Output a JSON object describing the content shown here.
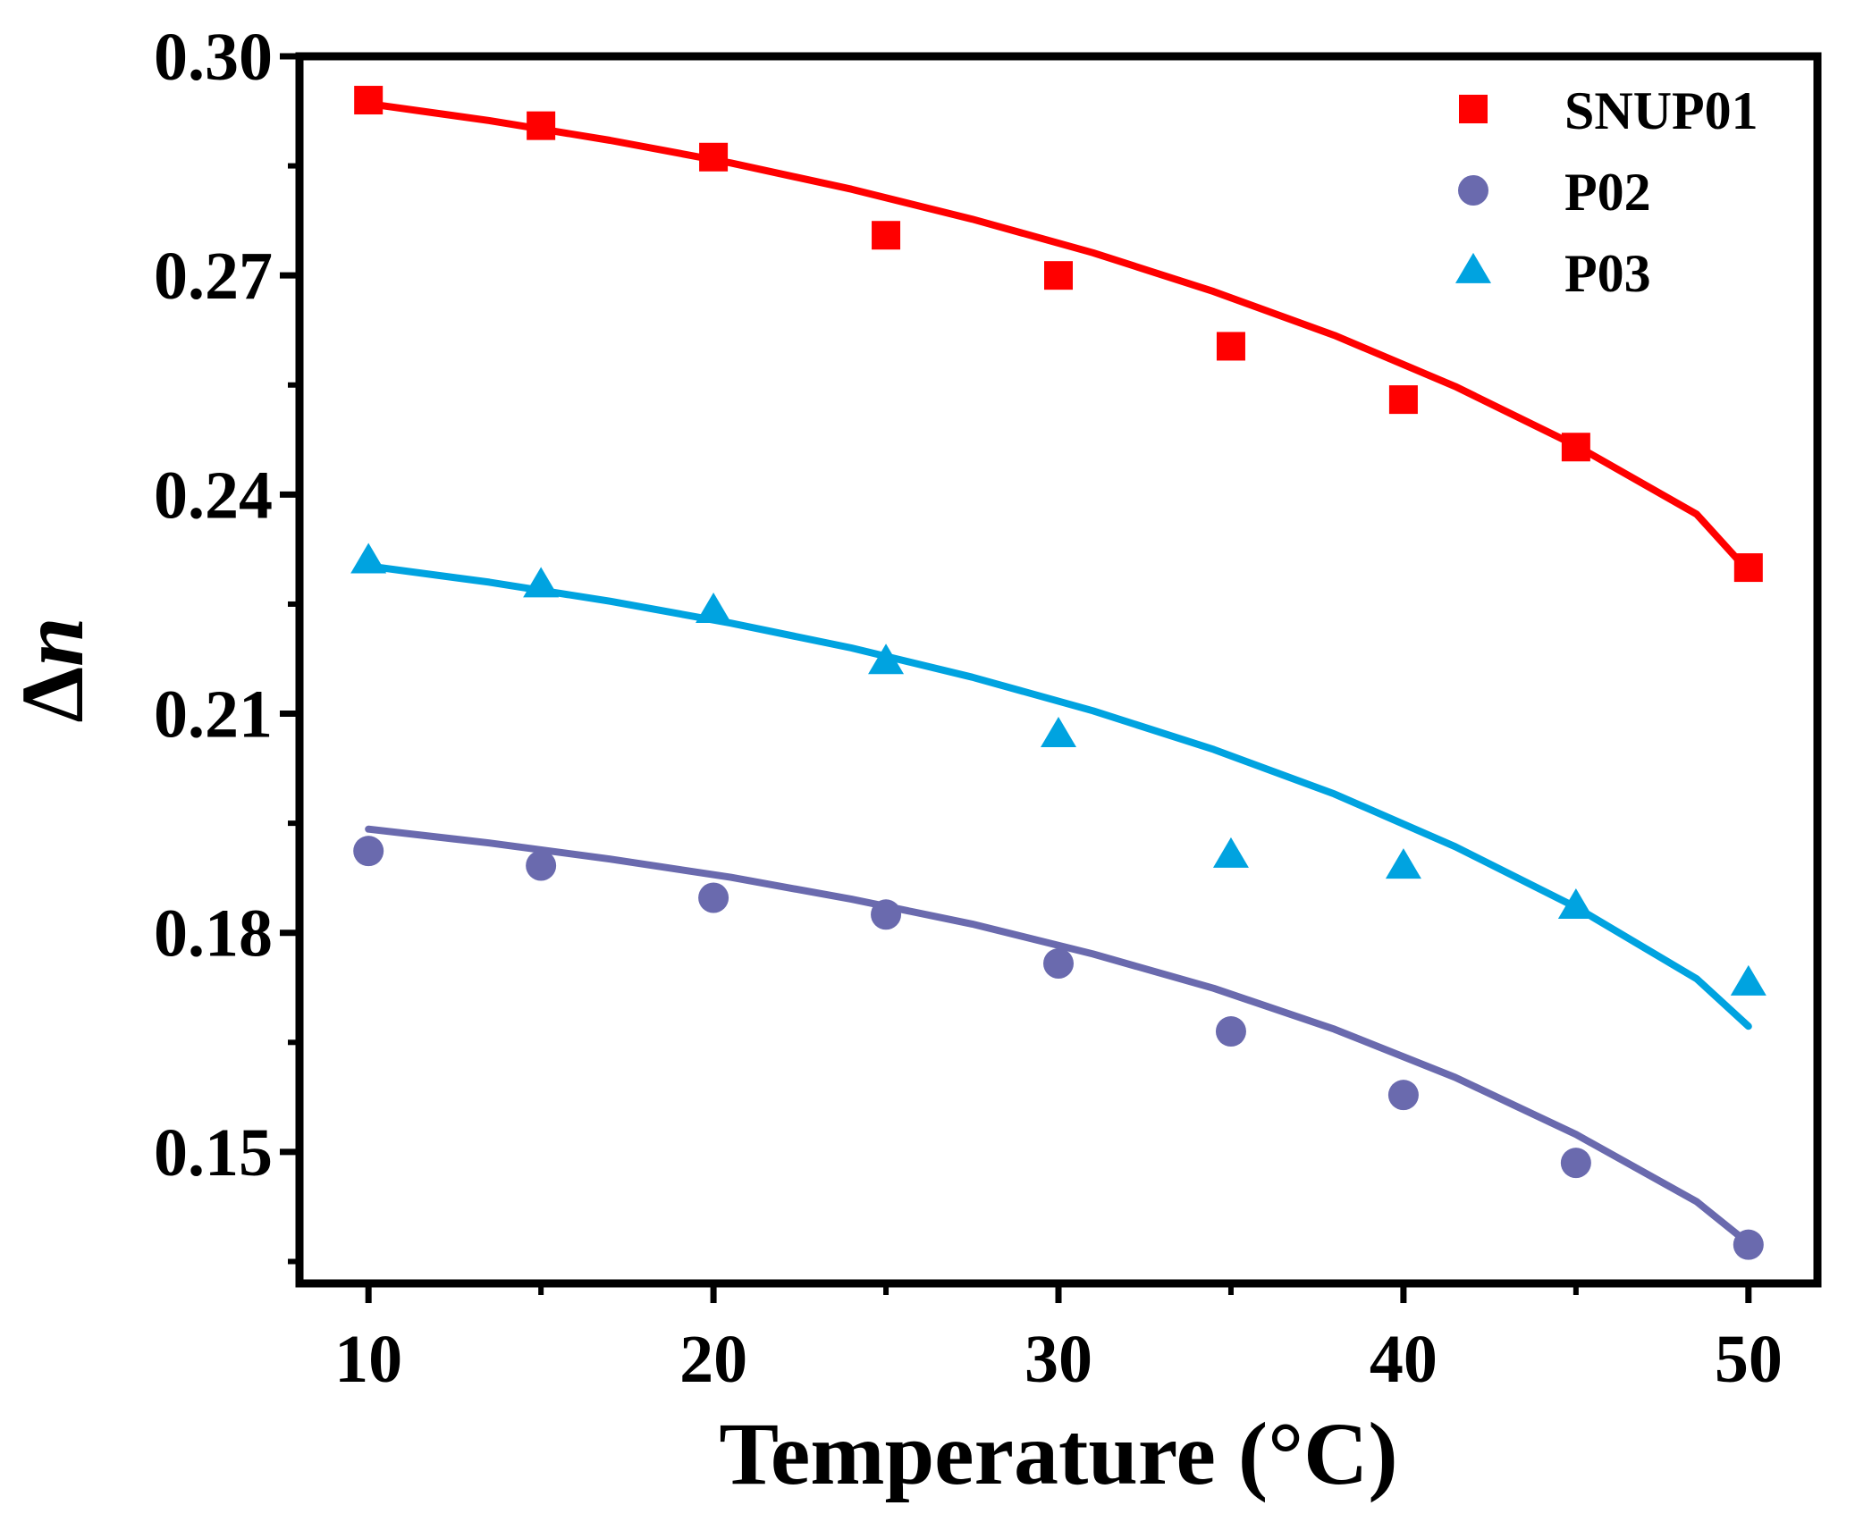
{
  "chart_data": {
    "type": "scatter",
    "title": "",
    "xlabel": "Temperature (°C)",
    "ylabel_symbol": "Δ",
    "ylabel_var": "n",
    "xlim": [
      8,
      52
    ],
    "ylim": [
      0.132,
      0.3
    ],
    "x_ticks": [
      10,
      20,
      30,
      40,
      50
    ],
    "x_tick_labels": [
      "10",
      "20",
      "30",
      "40",
      "50"
    ],
    "x_minor_ticks": [
      15,
      25,
      35,
      45
    ],
    "y_ticks": [
      0.15,
      0.18,
      0.21,
      0.24,
      0.27,
      0.3
    ],
    "y_tick_labels": [
      "0.15",
      "0.18",
      "0.21",
      "0.24",
      "0.27",
      "0.30"
    ],
    "y_minor_ticks": [
      0.135,
      0.165,
      0.195,
      0.225,
      0.255,
      0.285
    ],
    "legend_position": "top-right",
    "grid": false,
    "series": [
      {
        "name": "SNUP01",
        "marker": "square",
        "color": "#ff0000",
        "x": [
          10,
          15,
          20,
          25,
          30,
          35,
          40,
          45,
          50
        ],
        "y": [
          0.294,
          0.2905,
          0.2862,
          0.2755,
          0.27,
          0.2603,
          0.253,
          0.2465,
          0.23
        ],
        "fit": [
          0.2935,
          0.2912,
          0.2885,
          0.2854,
          0.2818,
          0.2777,
          0.2731,
          0.2678,
          0.2618,
          0.2548,
          0.2467,
          0.2373,
          0.2295
        ]
      },
      {
        "name": "P02",
        "marker": "circle",
        "color": "#6a6aae",
        "x": [
          10,
          15,
          20,
          25,
          30,
          35,
          40,
          45,
          50
        ],
        "y": [
          0.1912,
          0.1892,
          0.1848,
          0.1825,
          0.1758,
          0.1665,
          0.1578,
          0.1485,
          0.1373
        ],
        "fit": [
          0.1942,
          0.1923,
          0.1901,
          0.1876,
          0.1846,
          0.1812,
          0.1771,
          0.1724,
          0.1668,
          0.1602,
          0.1524,
          0.1432,
          0.1375
        ]
      },
      {
        "name": "P03",
        "marker": "triangle",
        "color": "#00a3e0",
        "x": [
          10,
          15,
          20,
          25,
          30,
          35,
          40,
          45,
          50
        ],
        "y": [
          0.2308,
          0.2275,
          0.224,
          0.217,
          0.207,
          0.1905,
          0.189,
          0.1835,
          0.173
        ],
        "fit": [
          0.2302,
          0.228,
          0.2254,
          0.2224,
          0.219,
          0.215,
          0.2104,
          0.2051,
          0.199,
          0.1918,
          0.1835,
          0.1737,
          0.1672
        ]
      }
    ],
    "fit_x": [
      10,
      13.5,
      17,
      20.5,
      24,
      27.5,
      31,
      34.5,
      38,
      41.5,
      45,
      48.5,
      50
    ]
  }
}
